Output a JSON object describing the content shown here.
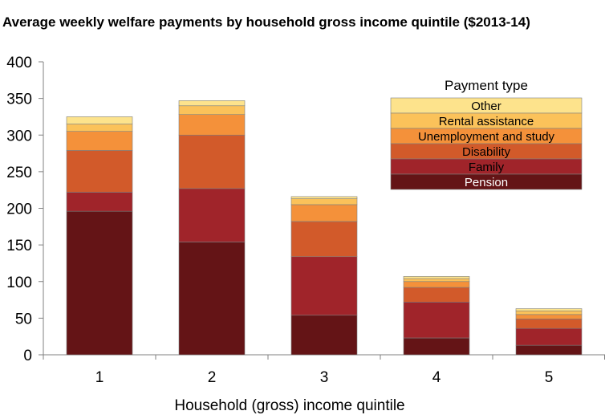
{
  "chart_data": {
    "type": "bar",
    "stacked": true,
    "title": "Average weekly welfare payments by household gross income quintile ($2013-14)",
    "xlabel": "Household (gross) income quintile",
    "ylabel": "",
    "categories": [
      "1",
      "2",
      "3",
      "4",
      "5"
    ],
    "ylim": [
      0,
      400
    ],
    "yticks": [
      0,
      50,
      100,
      150,
      200,
      250,
      300,
      350,
      400
    ],
    "grid": false,
    "legend": {
      "title": "Payment type",
      "placement": "top-right"
    },
    "series": [
      {
        "name": "Pension",
        "color": "#641416",
        "text_color": "#ffffff",
        "values": [
          196,
          154,
          54,
          23,
          13
        ]
      },
      {
        "name": "Family",
        "color": "#A0242A",
        "text_color": "#000000",
        "values": [
          26,
          73,
          80,
          49,
          23
        ]
      },
      {
        "name": "Disability",
        "color": "#D25A2A",
        "text_color": "#000000",
        "values": [
          57,
          73,
          48,
          20,
          13
        ]
      },
      {
        "name": "Unemployment and study",
        "color": "#F4913A",
        "text_color": "#000000",
        "values": [
          26,
          28,
          23,
          8,
          6
        ]
      },
      {
        "name": "Rental assistance",
        "color": "#FBC25A",
        "text_color": "#000000",
        "values": [
          10,
          12,
          8,
          4,
          5
        ]
      },
      {
        "name": "Other",
        "color": "#FDE38C",
        "text_color": "#000000",
        "values": [
          10,
          7,
          3,
          3,
          3
        ]
      }
    ]
  }
}
